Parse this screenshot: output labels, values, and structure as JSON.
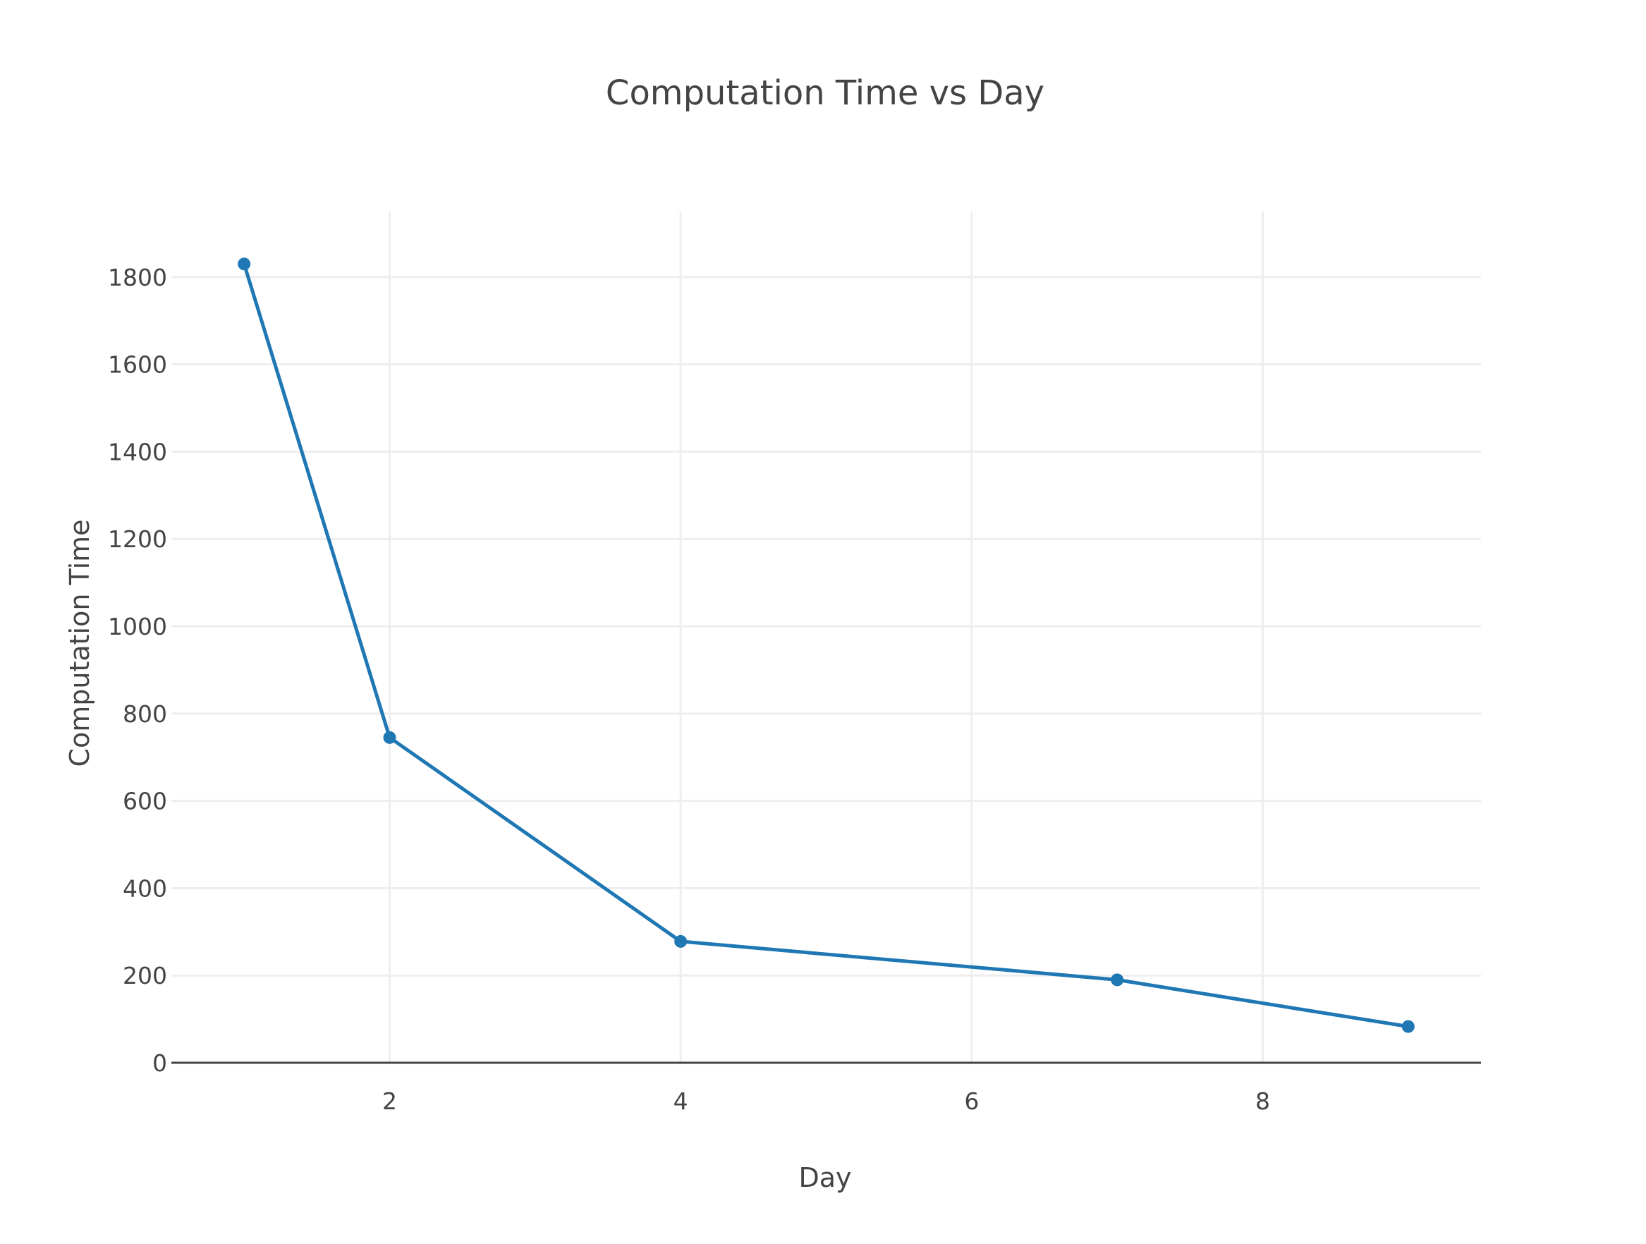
{
  "chart_data": {
    "type": "line",
    "title": "Computation Time vs Day",
    "xlabel": "Day",
    "ylabel": "Computation Time",
    "xlim": [
      0.5,
      9.5
    ],
    "ylim": [
      0,
      1950
    ],
    "x_ticks": [
      2,
      4,
      6,
      8
    ],
    "x_tick_labels": [
      "2",
      "4",
      "6",
      "8"
    ],
    "y_ticks": [
      0,
      200,
      400,
      600,
      800,
      1000,
      1200,
      1400,
      1600,
      1800
    ],
    "y_tick_labels": [
      "0",
      "200",
      "400",
      "600",
      "800",
      "1000",
      "1200",
      "1400",
      "1600",
      "1800"
    ],
    "grid": true,
    "legend": "none",
    "series": [
      {
        "color": "#1f77b4",
        "mode": "lines+markers",
        "x": [
          1,
          2,
          4,
          7,
          9
        ],
        "y": [
          1830,
          745,
          278,
          190,
          83
        ]
      }
    ]
  }
}
